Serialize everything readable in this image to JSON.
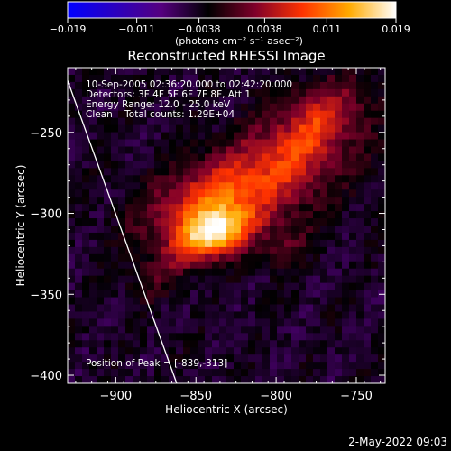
{
  "colors": {
    "background": "#000000",
    "text": "#ffffff",
    "colorbar_stops": [
      "#0000ff",
      "#2a00c0",
      "#55007f",
      "#000000",
      "#7f002a",
      "#ff3300",
      "#ffaa00",
      "#ffffff"
    ]
  },
  "colorbar": {
    "tick_labels": [
      "-0.019",
      "-0.011",
      "-0.0038",
      "0.0038",
      "0.011",
      "0.019"
    ],
    "unit_label": "(photons cm⁻² s⁻¹ asec⁻²)"
  },
  "annotations": {
    "time_range": "10-Sep-2005 02:36:20.000 to 02:42:20.000",
    "detectors": "Detectors: 3F 4F 5F 6F 7F 8F, Att 1",
    "energy_range": "Energy Range: 12.0 - 25.0 keV",
    "clean_counts": "Clean    Total counts: 1.29E+04",
    "peak_position": "Position of Peak = [-839,-313]"
  },
  "footer": {
    "date": "2-May-2022 09:03"
  },
  "chart_data": {
    "type": "heatmap",
    "title": "Reconstructed RHESSI Image",
    "xlabel": "Heliocentric X (arcsec)",
    "ylabel": "Heliocentric Y (arcsec)",
    "xlim": [
      -930,
      -732
    ],
    "ylim": [
      -405,
      -210
    ],
    "xticks": [
      -900,
      -850,
      -800,
      -750
    ],
    "yticks": [
      -250,
      -300,
      -350,
      -400
    ],
    "xtick_labels": [
      "-900",
      "-850",
      "-800",
      "-750"
    ],
    "ytick_labels": [
      "-250",
      "-300",
      "-350",
      "-400"
    ],
    "color_range": [
      -0.019,
      0.019
    ],
    "peak": [
      -839,
      -313
    ],
    "limb_line": [
      [
        -930,
        -218
      ],
      [
        -862,
        -405
      ]
    ],
    "sources": [
      {
        "x": -839,
        "y": -313,
        "sx": 14,
        "sy": 10,
        "amp": 0.0185
      },
      {
        "x": -850,
        "y": -295,
        "sx": 22,
        "sy": 16,
        "amp": 0.0085
      },
      {
        "x": -815,
        "y": -285,
        "sx": 30,
        "sy": 20,
        "amp": 0.006
      },
      {
        "x": -790,
        "y": -262,
        "sx": 26,
        "sy": 22,
        "amp": 0.0065
      },
      {
        "x": -770,
        "y": -240,
        "sx": 16,
        "sy": 14,
        "amp": 0.0065
      },
      {
        "x": -795,
        "y": -320,
        "sx": 10,
        "sy": 9,
        "amp": 0.0045
      },
      {
        "x": -875,
        "y": -340,
        "sx": 14,
        "sy": 10,
        "amp": 0.003
      }
    ]
  }
}
